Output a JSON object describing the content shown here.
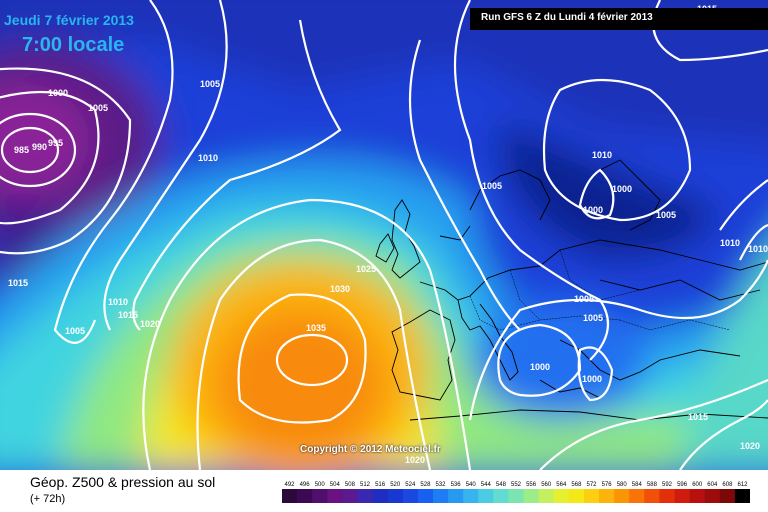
{
  "header": {
    "date": "Jeudi 7 février 2013",
    "time": "7:00 locale",
    "run": "Run GFS 6 Z du Lundi 4 février 2013"
  },
  "copyright": "Copyright © 2012 Meteociel.fr",
  "legend": {
    "title": "Géop. Z500 & pression au sol",
    "subtitle": "(+ 72h)",
    "scale_values": [
      "492",
      "496",
      "500",
      "504",
      "508",
      "512",
      "516",
      "520",
      "524",
      "528",
      "532",
      "536",
      "540",
      "544",
      "548",
      "552",
      "556",
      "560",
      "564",
      "568",
      "572",
      "576",
      "580",
      "584",
      "588",
      "592",
      "596",
      "600",
      "604",
      "608",
      "612"
    ],
    "scale_colors": [
      "#2a0a3a",
      "#3c0a55",
      "#520e6e",
      "#6a1280",
      "#5a1a90",
      "#3a28b0",
      "#1f2ec0",
      "#1838d0",
      "#1a48e0",
      "#1a60f0",
      "#1e7cf4",
      "#2898f0",
      "#38b4ec",
      "#4ccce4",
      "#62dcd0",
      "#7ce4b0",
      "#9cec88",
      "#c4f060",
      "#e4f030",
      "#f4e818",
      "#fcd010",
      "#fcb40c",
      "#fc9408",
      "#f87408",
      "#f05008",
      "#e43008",
      "#d01c0c",
      "#b81010",
      "#9c0c0c",
      "#7c0808",
      "#000000"
    ]
  },
  "isobar_labels": [
    "1000",
    "1005",
    "985",
    "990",
    "995",
    "1005",
    "1010",
    "1015",
    "1010",
    "1015",
    "1020",
    "1005",
    "1025",
    "1030",
    "1035",
    "1005",
    "1010",
    "1000",
    "1000",
    "1005",
    "1010",
    "1005",
    "1005",
    "1000",
    "1000",
    "1015",
    "1020",
    "1020",
    "1015",
    "1010"
  ],
  "colors": {
    "low_center": "#6a1a80",
    "high_center": "#f08410",
    "isobar": "#ffffff",
    "header_text": "#27b6f0"
  }
}
